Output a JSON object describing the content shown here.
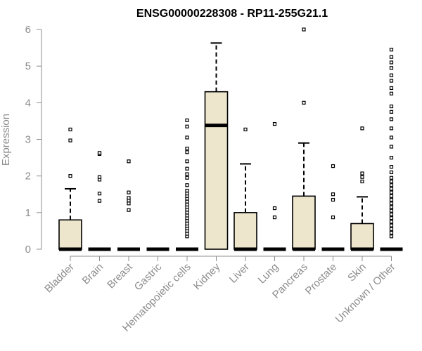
{
  "chart_data": {
    "type": "box",
    "title": "ENSG00000228308 - RP11-255G21.1",
    "ylabel": "Expression",
    "ylim": [
      0,
      6
    ],
    "yticks": [
      0,
      1,
      2,
      3,
      4,
      5,
      6
    ],
    "box_color": "#ede6cd",
    "categories": [
      "Bladder",
      "Brain",
      "Breast",
      "Gastric",
      "Hematopoietic cells",
      "Kidney",
      "Liver",
      "Lung",
      "Pancreas",
      "Prostate",
      "Skin",
      "Unknown / Other"
    ],
    "boxes": [
      {
        "q1": 0,
        "median": 0,
        "q3": 0.8,
        "whisker_low": 0,
        "whisker_high": 1.65,
        "outliers": [
          2.0,
          2.97,
          3.27
        ]
      },
      {
        "q1": 0,
        "median": 0,
        "q3": 0,
        "whisker_low": 0,
        "whisker_high": 0,
        "outliers": [
          1.32,
          1.52,
          1.9,
          1.97,
          2.6,
          2.63
        ]
      },
      {
        "q1": 0,
        "median": 0,
        "q3": 0,
        "whisker_low": 0,
        "whisker_high": 0,
        "outliers": [
          1.07,
          1.25,
          1.33,
          1.4,
          1.55,
          2.4
        ]
      },
      {
        "q1": 0,
        "median": 0,
        "q3": 0,
        "whisker_low": 0,
        "whisker_high": 0,
        "outliers": []
      },
      {
        "q1": 0,
        "median": 0,
        "q3": 0,
        "whisker_low": 0,
        "whisker_high": 0,
        "outliers": [
          0.35,
          0.42,
          0.5,
          0.57,
          0.63,
          0.7,
          0.78,
          0.85,
          0.92,
          1.0,
          1.08,
          1.15,
          1.22,
          1.3,
          1.38,
          1.45,
          1.52,
          1.6,
          1.75,
          1.95,
          2.05,
          2.2,
          2.4,
          2.65,
          2.75,
          3.05,
          3.35,
          3.52
        ]
      },
      {
        "q1": 0,
        "median": 3.38,
        "q3": 4.3,
        "whisker_low": 0,
        "whisker_high": 5.63,
        "outliers": []
      },
      {
        "q1": 0,
        "median": 0,
        "q3": 1.0,
        "whisker_low": 0,
        "whisker_high": 2.33,
        "outliers": [
          3.27
        ]
      },
      {
        "q1": 0,
        "median": 0,
        "q3": 0,
        "whisker_low": 0,
        "whisker_high": 0,
        "outliers": [
          0.87,
          1.12,
          3.42
        ]
      },
      {
        "q1": 0,
        "median": 0,
        "q3": 1.45,
        "whisker_low": 0,
        "whisker_high": 2.9,
        "outliers": [
          4.0,
          6.0
        ]
      },
      {
        "q1": 0,
        "median": 0,
        "q3": 0,
        "whisker_low": 0,
        "whisker_high": 0,
        "outliers": [
          0.87,
          1.35,
          1.5,
          2.27
        ]
      },
      {
        "q1": 0,
        "median": 0,
        "q3": 0.7,
        "whisker_low": 0,
        "whisker_high": 1.43,
        "outliers": [
          1.85,
          1.97,
          2.07,
          3.3
        ]
      },
      {
        "q1": 0,
        "median": 0,
        "q3": 0,
        "whisker_low": 0,
        "whisker_high": 0,
        "outliers": [
          0.35,
          0.45,
          0.55,
          0.65,
          0.75,
          0.85,
          0.95,
          1.05,
          1.15,
          1.25,
          1.35,
          1.45,
          1.55,
          1.65,
          1.75,
          1.85,
          1.95,
          2.1,
          2.25,
          2.5,
          2.8,
          3.05,
          3.3,
          3.55,
          3.75,
          3.9,
          4.25,
          4.4,
          4.6,
          4.75,
          4.95,
          5.1,
          5.25,
          5.45
        ]
      }
    ]
  }
}
